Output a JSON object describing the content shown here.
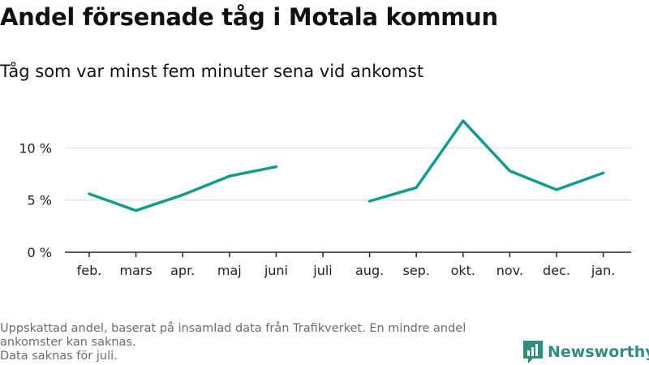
{
  "title": "Andel försenade tåg i Motala kommun",
  "subtitle": "Tåg som var minst fem minuter sena vid ankomst",
  "note": {
    "line1": "Uppskattad andel, baserat på insamlad data från Trafikverket. En mindre andel ankomster kan saknas.",
    "line2": "Data saknas för juli."
  },
  "brand": {
    "name": "Newsworthy",
    "color": "#2d8f7c"
  },
  "chart_data": {
    "type": "line",
    "categories": [
      "feb.",
      "mars",
      "apr.",
      "maj",
      "juni",
      "juli",
      "aug.",
      "sep.",
      "okt.",
      "nov.",
      "dec.",
      "jan."
    ],
    "series": [
      {
        "values": [
          5.6,
          4.0,
          5.5,
          7.3,
          8.2,
          null,
          4.9,
          6.2,
          12.6,
          7.8,
          6.0,
          7.6
        ]
      }
    ],
    "yticks": [
      {
        "value": 0,
        "label": "0 %"
      },
      {
        "value": 5,
        "label": "5 %"
      },
      {
        "value": 10,
        "label": "10 %"
      }
    ],
    "ylim": [
      0,
      13.3
    ],
    "grid": true,
    "line_color": "#139b8d",
    "grid_color": "#dddddd",
    "axis_color": "#222222"
  }
}
